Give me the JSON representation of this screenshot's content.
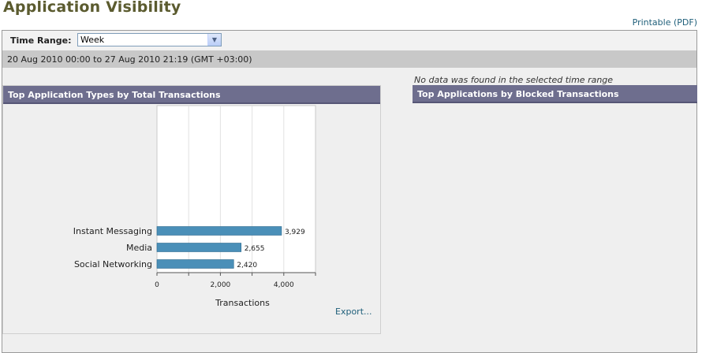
{
  "page": {
    "title": "Application Visibility",
    "printable_label": "Printable (PDF)"
  },
  "time_range": {
    "label": "Time Range:",
    "selected": "Week"
  },
  "date_range": "20 Aug 2010 00:00 to 27 Aug 2010 21:19 (GMT +03:00)",
  "panels": {
    "left_title": "Top Application Types by Total Transactions",
    "right_title": "Top Applications by Blocked Transactions",
    "right_empty_message": "No data was found in the selected time range",
    "export_label": "Export..."
  },
  "colors": {
    "bar": "#4a8fb8",
    "panel_header": "#6e6e8e",
    "title": "#5b5b2f",
    "link": "#1f5f7a"
  },
  "chart_data": {
    "type": "bar",
    "orientation": "horizontal",
    "categories": [
      "Instant Messaging",
      "Media",
      "Social Networking"
    ],
    "values": [
      3929,
      2655,
      2420
    ],
    "value_labels": [
      "3,929",
      "2,655",
      "2,420"
    ],
    "xlabel": "Transactions",
    "xlim": [
      0,
      5000
    ],
    "xticks": [
      0,
      2000,
      4000
    ],
    "xtick_labels": [
      "0",
      "2,000",
      "4,000"
    ],
    "grid": true
  }
}
